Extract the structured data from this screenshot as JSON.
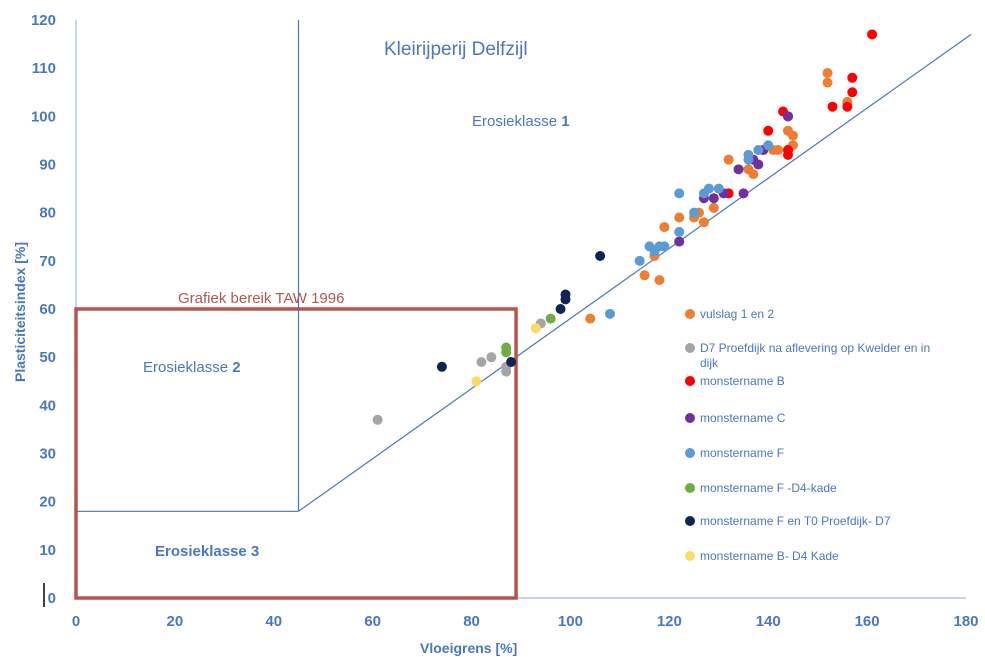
{
  "chart_data": {
    "type": "scatter",
    "title": "Kleirijperij Delfzijl",
    "xlabel": "Vloeigrens [%]",
    "ylabel": "Plasticiteitsindex [%]",
    "xlim": [
      0,
      180
    ],
    "ylim": [
      0,
      120
    ],
    "x_ticks": [
      "0",
      "20",
      "40",
      "60",
      "80",
      "100",
      "120",
      "140",
      "160",
      "180"
    ],
    "y_ticks": [
      "0",
      "10",
      "20",
      "30",
      "40",
      "50",
      "60",
      "70",
      "80",
      "90",
      "100",
      "110",
      "120"
    ],
    "grid": false,
    "legend_position": "right",
    "zones": [
      {
        "label": "Erosieklasse 1",
        "class_number": "1"
      },
      {
        "label": "Erosieklasse 2",
        "class_number": "2"
      },
      {
        "label": "Erosieklasse 3",
        "class_number": "3"
      }
    ],
    "range_box": {
      "label": "Grafiek bereik TAW 1996",
      "x": [
        0,
        89
      ],
      "y": [
        0,
        60
      ],
      "color": "#b9534f"
    },
    "boundary_lines": [
      {
        "x": [
          45,
          45
        ],
        "y": [
          18,
          120
        ]
      },
      {
        "x": [
          0,
          45
        ],
        "y": [
          18,
          18
        ]
      },
      {
        "x": [
          45,
          181
        ],
        "y": [
          18,
          117
        ]
      }
    ],
    "series": [
      {
        "name": "vulslag 1 en 2",
        "color": "#ed7d31",
        "points": [
          [
            104,
            58
          ],
          [
            115,
            67
          ],
          [
            117,
            71
          ],
          [
            118,
            66
          ],
          [
            119,
            77
          ],
          [
            122,
            79
          ],
          [
            125,
            79
          ],
          [
            127,
            78
          ],
          [
            126,
            80
          ],
          [
            129,
            81
          ],
          [
            132,
            91
          ],
          [
            136,
            89
          ],
          [
            137,
            88
          ],
          [
            141,
            93
          ],
          [
            142,
            93
          ],
          [
            144,
            93
          ],
          [
            144,
            97
          ],
          [
            145,
            96
          ],
          [
            145,
            94
          ],
          [
            152,
            109
          ],
          [
            152,
            107
          ],
          [
            156,
            103
          ]
        ]
      },
      {
        "name": "D7 Proefdijk na aflevering op Kwelder en in dijk",
        "color": "#a5a5a5",
        "points": [
          [
            61,
            37
          ],
          [
            82,
            49
          ],
          [
            84,
            50
          ],
          [
            87,
            47
          ],
          [
            87,
            48
          ],
          [
            94,
            57
          ]
        ]
      },
      {
        "name": "monstername B",
        "color": "#ff0000",
        "points": [
          [
            132,
            84
          ],
          [
            140,
            97
          ],
          [
            143,
            101
          ],
          [
            144,
            100
          ],
          [
            144,
            92
          ],
          [
            144,
            93
          ],
          [
            153,
            102
          ],
          [
            156,
            102
          ],
          [
            157,
            108
          ],
          [
            157,
            105
          ],
          [
            161,
            117
          ]
        ]
      },
      {
        "name": "monstername C",
        "color": "#7030a0",
        "points": [
          [
            122,
            74
          ],
          [
            127,
            83
          ],
          [
            129,
            83
          ],
          [
            131,
            84
          ],
          [
            134,
            89
          ],
          [
            135,
            84
          ],
          [
            137,
            91
          ],
          [
            138,
            90
          ],
          [
            139,
            93
          ],
          [
            144,
            100
          ]
        ]
      },
      {
        "name": "monstername F",
        "color": "#5b9bd5",
        "points": [
          [
            108,
            59
          ],
          [
            114,
            70
          ],
          [
            116,
            73
          ],
          [
            117,
            72
          ],
          [
            118,
            73
          ],
          [
            119,
            73
          ],
          [
            122,
            84
          ],
          [
            122,
            76
          ],
          [
            125,
            80
          ],
          [
            127,
            84
          ],
          [
            128,
            85
          ],
          [
            130,
            85
          ],
          [
            136,
            91
          ],
          [
            136,
            92
          ],
          [
            138,
            93
          ],
          [
            140,
            94
          ]
        ]
      },
      {
        "name": "monstername F -D4-kade",
        "color": "#70ad47",
        "points": [
          [
            87,
            52
          ],
          [
            87,
            51
          ],
          [
            96,
            58
          ]
        ]
      },
      {
        "name": "monstername F en T0 Proefdijk- D7",
        "color": "#0e2453",
        "points": [
          [
            74,
            48
          ],
          [
            88,
            49
          ],
          [
            98,
            60
          ],
          [
            99,
            62
          ],
          [
            99,
            63
          ],
          [
            106,
            71
          ]
        ]
      },
      {
        "name": "monstername B- D4 Kade",
        "color": "#ffd966",
        "points": [
          [
            81,
            45
          ],
          [
            93,
            56
          ]
        ]
      }
    ]
  }
}
